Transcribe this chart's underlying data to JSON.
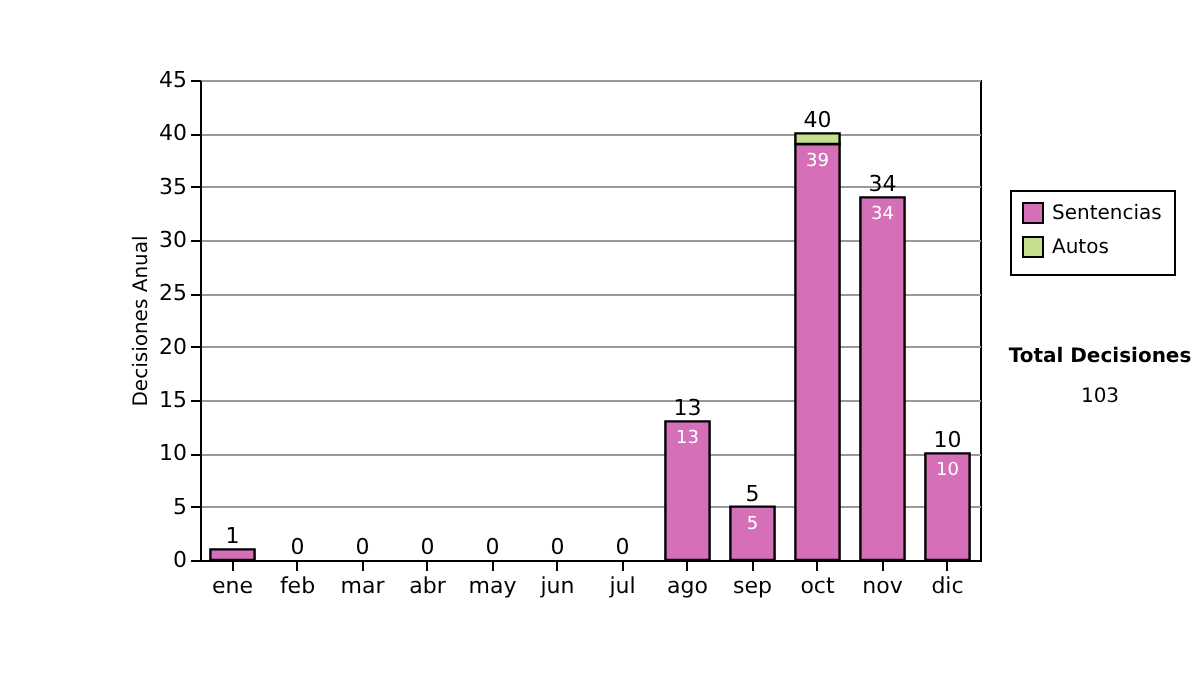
{
  "chart_data": {
    "type": "bar",
    "stacked": true,
    "ylabel": "Decisiones Anual",
    "categories": [
      "ene",
      "feb",
      "mar",
      "abr",
      "may",
      "jun",
      "jul",
      "ago",
      "sep",
      "oct",
      "nov",
      "dic"
    ],
    "series": [
      {
        "name": "Sentencias",
        "color": "#d46fb8",
        "values": [
          1,
          0,
          0,
          0,
          0,
          0,
          0,
          13,
          5,
          39,
          34,
          10
        ],
        "value_labels": [
          null,
          null,
          null,
          null,
          null,
          null,
          null,
          "13",
          "5",
          "39",
          "34",
          "10"
        ]
      },
      {
        "name": "Autos",
        "color": "#c5e08c",
        "values": [
          0,
          0,
          0,
          0,
          0,
          0,
          0,
          0,
          0,
          1,
          0,
          0
        ]
      }
    ],
    "totals": [
      "1",
      "0",
      "0",
      "0",
      "0",
      "0",
      "0",
      "13",
      "5",
      "40",
      "34",
      "10"
    ],
    "ylim": [
      0,
      45
    ],
    "yticks": [
      0,
      5,
      10,
      15,
      20,
      25,
      30,
      35,
      40,
      45
    ],
    "grid": "y",
    "legend": "right",
    "annotations": [
      "Total Decisiones",
      "103"
    ]
  }
}
